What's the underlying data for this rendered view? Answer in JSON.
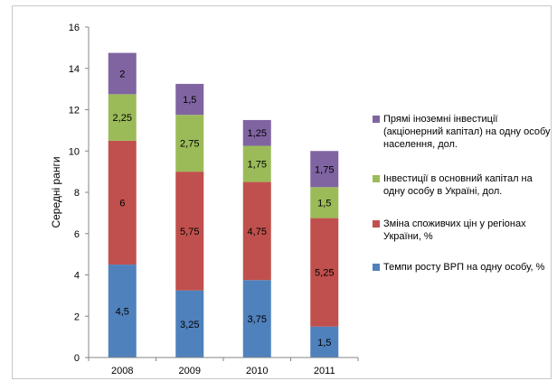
{
  "chart_data": {
    "type": "bar",
    "stacked": true,
    "categories": [
      "2008",
      "2009",
      "2010",
      "2011"
    ],
    "ylabel": "Середні ранги",
    "xlabel": "",
    "ylim": [
      0,
      16
    ],
    "yticks": [
      0,
      2,
      4,
      6,
      8,
      10,
      12,
      14,
      16
    ],
    "grid": false,
    "legend_position": "right",
    "series": [
      {
        "name": "Темпи росту ВРП на одну особу, %",
        "color": "#4f81bd",
        "values": [
          4.5,
          3.25,
          3.75,
          1.5
        ],
        "labels": [
          "4,5",
          "3,25",
          "3,75",
          "1,5"
        ]
      },
      {
        "name": "Зміна споживчих цін у регіонах України, %",
        "color": "#c0504d",
        "values": [
          6,
          5.75,
          4.75,
          5.25
        ],
        "labels": [
          "6",
          "5,75",
          "4,75",
          "5,25"
        ]
      },
      {
        "name": "Інвестиції в основний капітал на одну особу в Україні, дол.",
        "color": "#9bbb59",
        "values": [
          2.25,
          2.75,
          1.75,
          1.5
        ],
        "labels": [
          "2,25",
          "2,75",
          "1,75",
          "1,5"
        ]
      },
      {
        "name": "Прямі іноземні інвестиції (акціонерний капітал) на одну особу населення, дол.",
        "color": "#8064a2",
        "values": [
          2,
          1.5,
          1.25,
          1.75
        ],
        "labels": [
          "2",
          "1,5",
          "1,25",
          "1,75"
        ]
      }
    ]
  }
}
